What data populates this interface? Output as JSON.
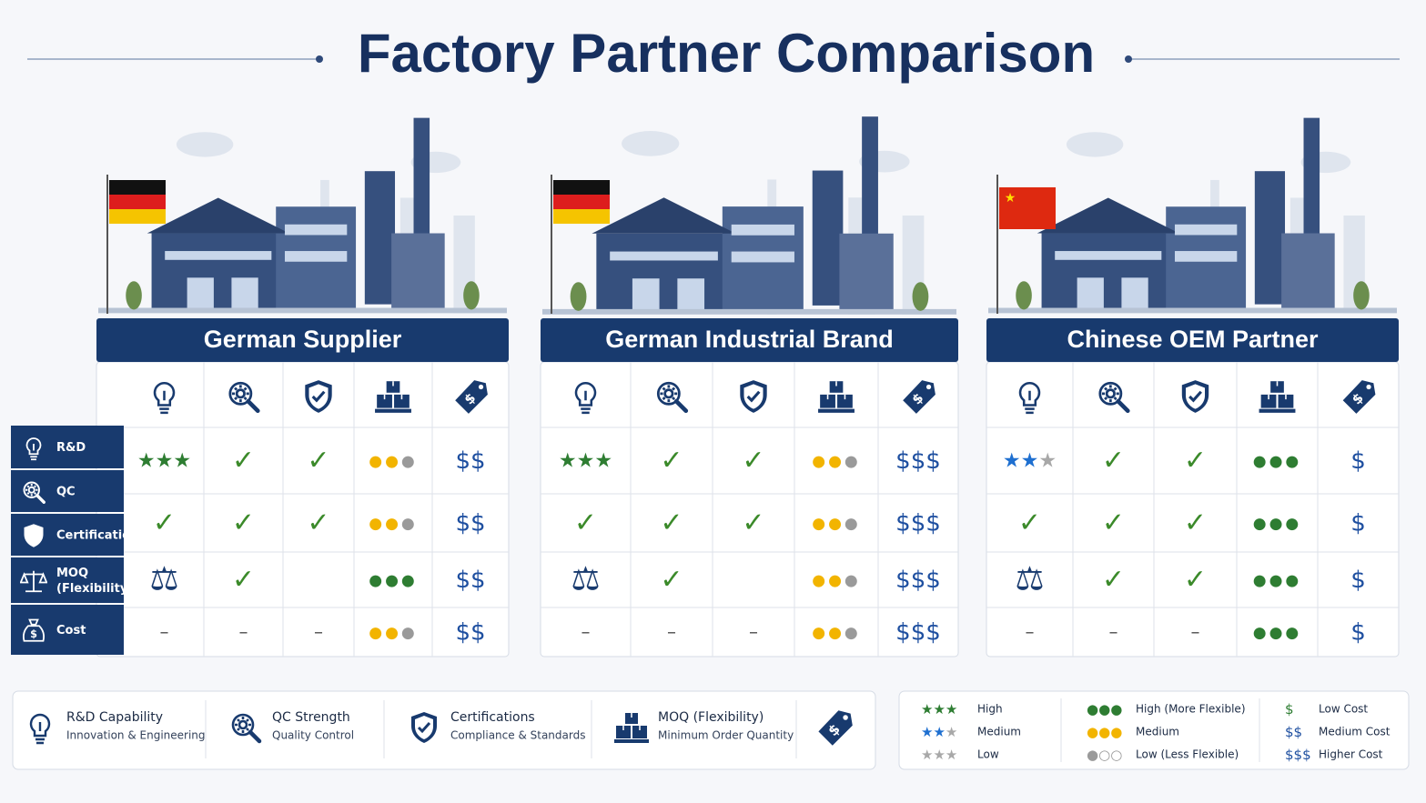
{
  "title": "Factory Partner Comparison",
  "row_labels": [
    [
      "R&D"
    ],
    [
      "QC"
    ],
    [
      "Certifications"
    ],
    [
      "MOQ",
      "(Flexibility)"
    ],
    [
      "Cost"
    ]
  ],
  "panels": [
    {
      "name": "German Supplier",
      "flag": "de",
      "star_colors": [
        "#2e7d32",
        "#2e7d32",
        "#2e7d32"
      ],
      "dot_colors": [
        [
          "#f2b400",
          "#f2b400",
          "#9a9a9a"
        ],
        [
          "#f2b400",
          "#f2b400",
          "#9a9a9a"
        ],
        [
          "#2e7d32",
          "#2e7d32",
          "#2e7d32"
        ],
        [
          "#f2b400",
          "#f2b400",
          "#9a9a9a"
        ]
      ],
      "rows": [
        [
          "★★★",
          "✓",
          "✓",
          "●●●",
          "$$"
        ],
        [
          "✓",
          "✓",
          "✓",
          "●●●",
          "$$"
        ],
        [
          "⚖",
          "✓",
          null,
          "●●●",
          "$$"
        ],
        [
          "–",
          "–",
          "–",
          "●●●",
          "$$"
        ]
      ]
    },
    {
      "name": "German Industrial Brand",
      "flag": "de",
      "star_colors": [
        "#2e7d32",
        "#2e7d32",
        "#2e7d32"
      ],
      "dot_colors": [
        [
          "#f2b400",
          "#f2b400",
          "#9a9a9a"
        ],
        [
          "#f2b400",
          "#f2b400",
          "#9a9a9a"
        ],
        [
          "#f2b400",
          "#f2b400",
          "#9a9a9a"
        ],
        [
          "#f2b400",
          "#f2b400",
          "#9a9a9a"
        ]
      ],
      "rows": [
        [
          "★★★",
          "✓",
          "✓",
          "●●●",
          "$$$"
        ],
        [
          "✓",
          "✓",
          "✓",
          "●●●",
          "$$$"
        ],
        [
          "⚖",
          "✓",
          null,
          "●●●",
          "$$$"
        ],
        [
          "–",
          "–",
          "–",
          "●●●",
          "$$$"
        ]
      ]
    },
    {
      "name": "Chinese OEM Partner",
      "flag": "cn",
      "star_colors": [
        "#1e6fd0",
        "#1e6fd0",
        "#a8a8a8"
      ],
      "dot_colors": [
        [
          "#2e7d32",
          "#2e7d32",
          "#2e7d32"
        ],
        [
          "#2e7d32",
          "#2e7d32",
          "#2e7d32"
        ],
        [
          "#2e7d32",
          "#2e7d32",
          "#2e7d32"
        ],
        [
          "#2e7d32",
          "#2e7d32",
          "#2e7d32"
        ]
      ],
      "rows": [
        [
          "★★★",
          "✓",
          "✓",
          "●●●",
          "$"
        ],
        [
          "✓",
          "✓",
          "✓",
          "●●●",
          "$"
        ],
        [
          "⚖",
          "✓",
          "✓",
          "●●●",
          "$"
        ],
        [
          "–",
          "–",
          "–",
          "●●●",
          "$"
        ]
      ]
    }
  ],
  "legend": {
    "icons": [
      {
        "title": "R&D Capability",
        "subtitle": "Innovation & Engineering"
      },
      {
        "title": "QC Strength",
        "subtitle": "Quality Control"
      },
      {
        "title": "Certifications",
        "subtitle": "Compliance & Standards"
      },
      {
        "title": "MOQ (Flexibility)",
        "subtitle": "Minimum Order Quantity"
      }
    ],
    "keys": [
      [
        {
          "symbol": "★★★",
          "label": "High",
          "colors": [
            "#2e7d32",
            "#2e7d32",
            "#2e7d32"
          ]
        },
        {
          "symbol": "★★★",
          "label": "Medium",
          "colors": [
            "#1e6fd0",
            "#1e6fd0",
            "#a8a8a8"
          ]
        },
        {
          "symbol": "★★★",
          "label": "Low",
          "colors": [
            "#a8a8a8",
            "#a8a8a8",
            "#a8a8a8"
          ]
        }
      ],
      [
        {
          "symbol": "●●●",
          "label": "High (More Flexible)",
          "colors": [
            "#2e7d32",
            "#2e7d32",
            "#2e7d32"
          ]
        },
        {
          "symbol": "●●●",
          "label": "Medium",
          "colors": [
            "#f2b400",
            "#f2b400",
            "#f2b400"
          ]
        },
        {
          "symbol": "●○○",
          "label": "Low (Less Flexible)",
          "colors": [
            "#9a9a9a",
            "#9a9a9a",
            "#9a9a9a"
          ]
        }
      ],
      [
        {
          "symbol": "$",
          "label": "Low Cost",
          "colors": [
            "#2e7d32"
          ]
        },
        {
          "symbol": "$$",
          "label": "Medium Cost",
          "colors": [
            "#1e4fa0",
            "#1e4fa0"
          ]
        },
        {
          "symbol": "$$$",
          "label": "Higher Cost",
          "colors": [
            "#1e4fa0",
            "#1e4fa0",
            "#1e4fa0"
          ]
        }
      ]
    ]
  }
}
